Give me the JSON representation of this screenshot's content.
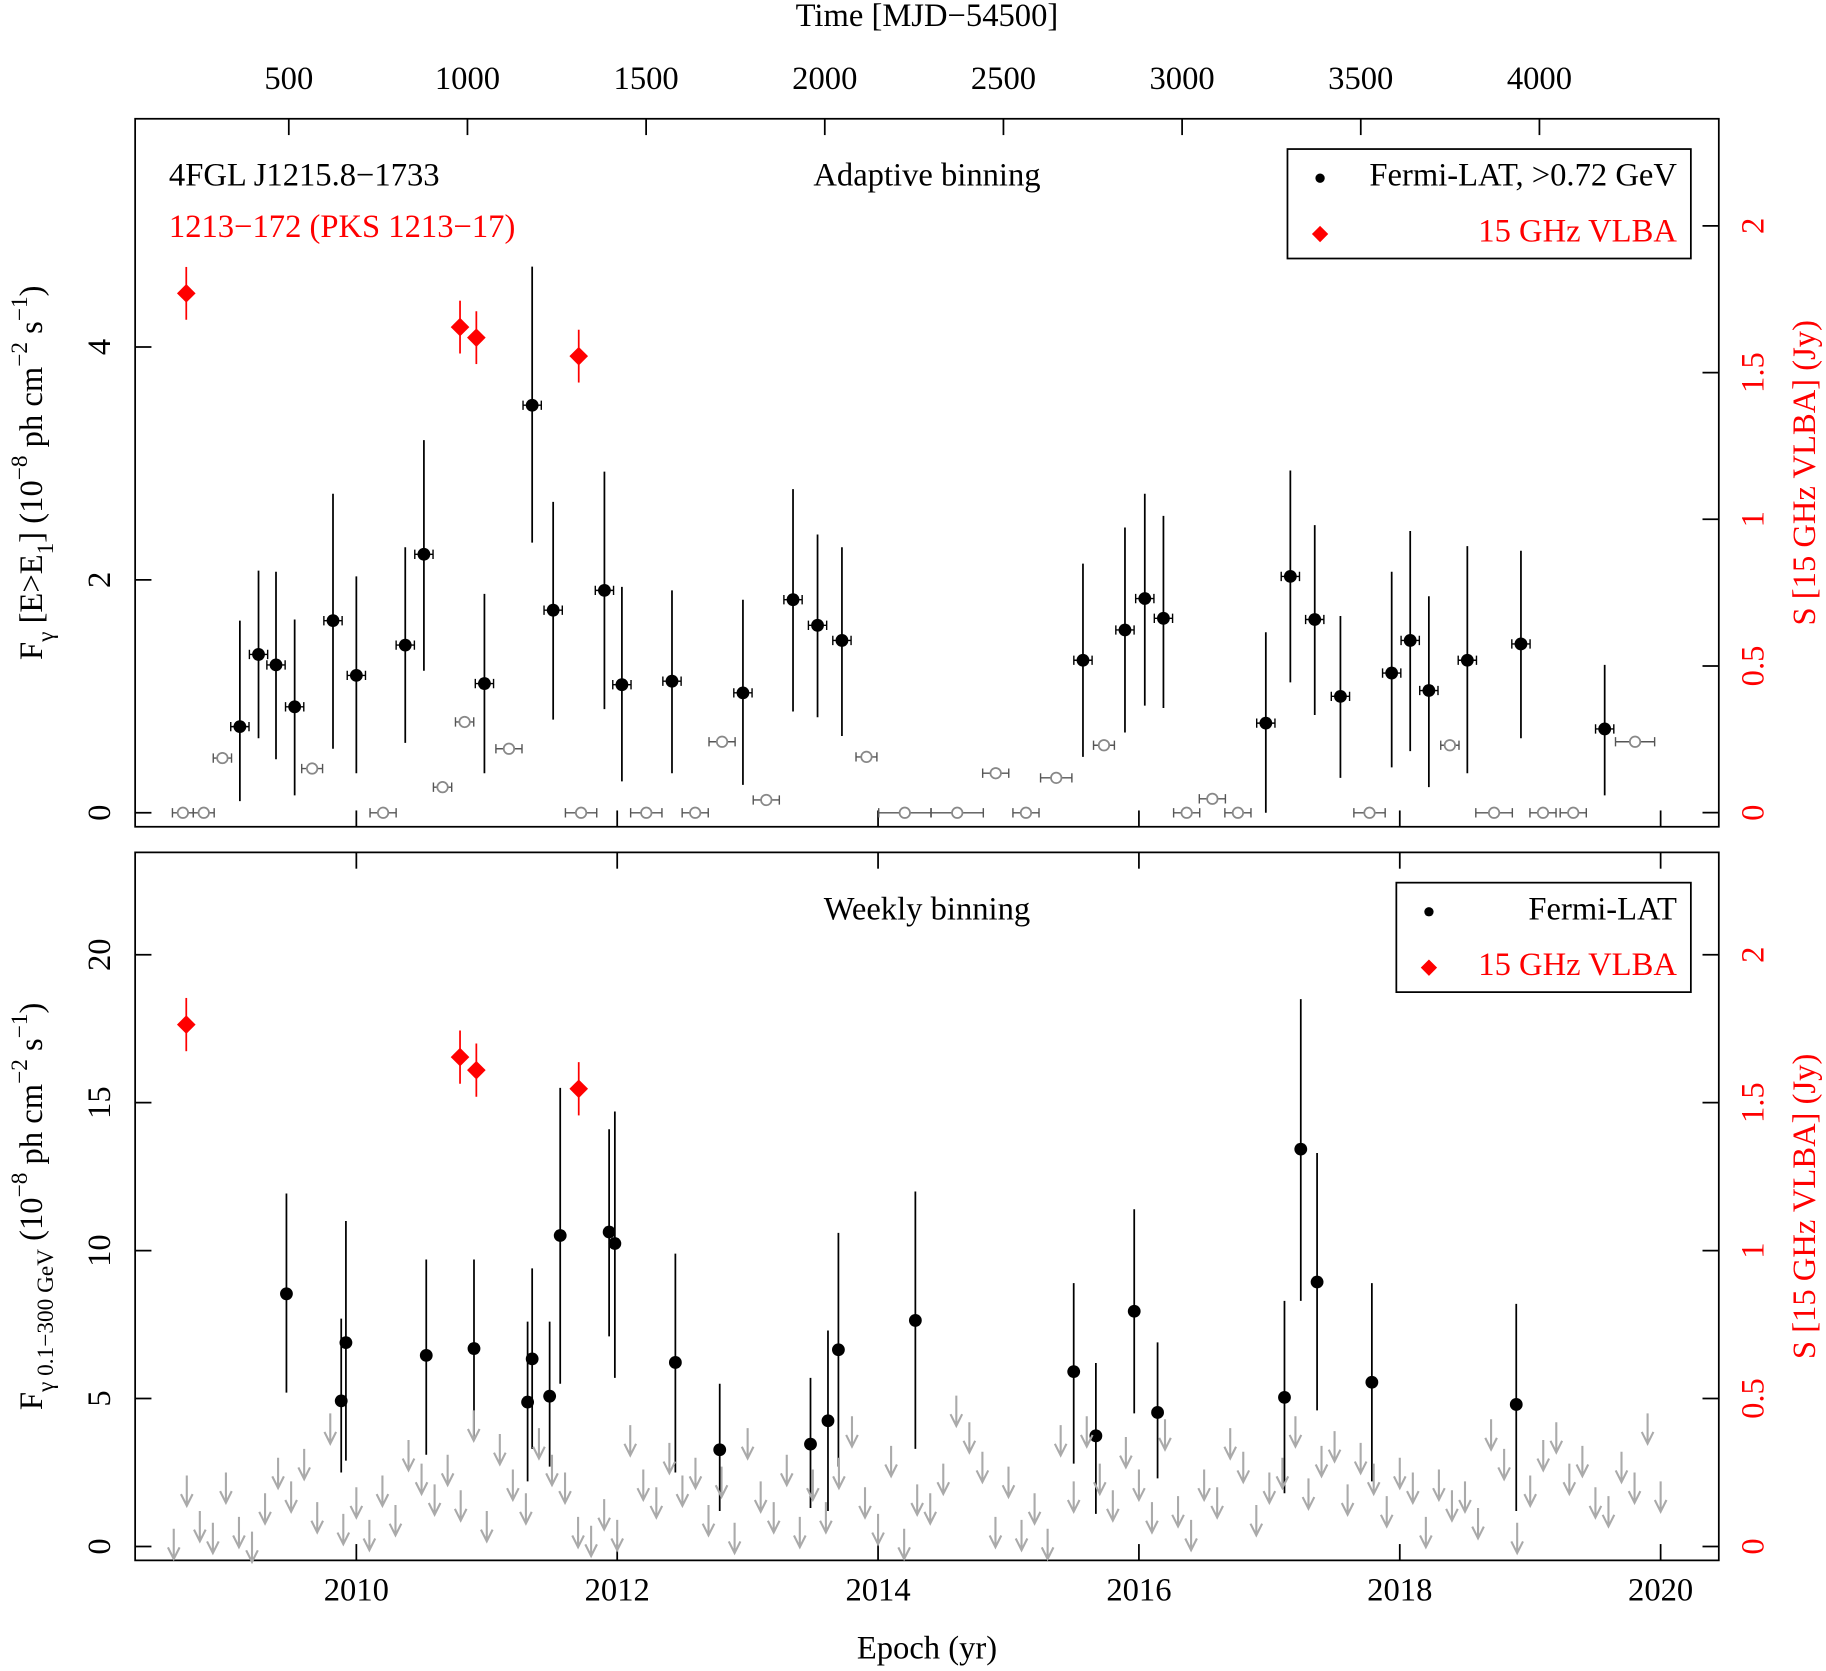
{
  "chart_data": [
    {
      "type": "scatter",
      "title": "Adaptive binning",
      "annotations": [
        {
          "text": "4FGL J1215.8−1733",
          "color": "#000000"
        },
        {
          "text": "1213−172 (PKS 1213−17)",
          "color": "#ff0000"
        }
      ],
      "x2label": "Time [MJD−54500]",
      "x2lim": [
        70,
        4502
      ],
      "x2ticks": [
        500,
        1000,
        1500,
        2000,
        2500,
        3000,
        3500,
        4000
      ],
      "xlim": [
        2008.304,
        2020.446
      ],
      "xticks": [
        2010,
        2012,
        2014,
        2016,
        2018,
        2020
      ],
      "xtick_labels": false,
      "ylabel": [
        [
          "F",
          "base"
        ],
        [
          "γ",
          "sub"
        ],
        [
          " [E>E",
          "base"
        ],
        [
          "1",
          "sub"
        ],
        [
          "] (10",
          "base"
        ],
        [
          "−8",
          "sup"
        ],
        [
          " ph cm",
          "base"
        ],
        [
          "−2",
          "sup"
        ],
        [
          " s",
          "base"
        ],
        [
          "−1",
          "sup"
        ],
        [
          ")",
          "base"
        ]
      ],
      "ylim": [
        -0.12,
        5.96
      ],
      "yticks": [
        0,
        2,
        4
      ],
      "y2label": "S [15 GHz VLBA] (Jy)",
      "y2color": "#ff0000",
      "y2lim": [
        -0.048,
        2.365
      ],
      "y2ticks": [
        0,
        0.5,
        1,
        1.5,
        2
      ],
      "legend": "upper right",
      "series": [
        {
          "name": "Fermi-LAT, >0.72 GeV",
          "color": "#000000",
          "marker": "filled-circle",
          "x": [
            2009.107,
            2009.25,
            2009.384,
            2009.527,
            2009.821,
            2010.0,
            2010.375,
            2010.518,
            2010.982,
            2011.348,
            2011.509,
            2011.902,
            2012.036,
            2012.42,
            2012.964,
            2013.348,
            2013.536,
            2013.723,
            2015.571,
            2015.893,
            2016.045,
            2016.188,
            2016.973,
            2017.161,
            2017.348,
            2017.545,
            2017.938,
            2018.08,
            2018.223,
            2018.518,
            2018.929,
            2019.571
          ],
          "values": [
            0.74,
            1.36,
            1.27,
            0.91,
            1.65,
            1.18,
            1.44,
            2.22,
            1.11,
            3.5,
            1.74,
            1.91,
            1.1,
            1.13,
            1.03,
            1.83,
            1.61,
            1.48,
            1.31,
            1.57,
            1.84,
            1.67,
            0.77,
            2.03,
            1.66,
            1.0,
            1.2,
            1.48,
            1.05,
            1.31,
            1.45,
            0.72
          ],
          "low": [
            0.1,
            0.64,
            0.46,
            0.15,
            0.55,
            0.34,
            0.6,
            1.22,
            0.34,
            2.32,
            0.8,
            0.89,
            0.27,
            0.34,
            0.24,
            0.87,
            0.82,
            0.66,
            0.48,
            0.69,
            0.92,
            0.9,
            0,
            1.12,
            0.84,
            0.3,
            0.39,
            0.53,
            0.22,
            0.34,
            0.64,
            0.15
          ],
          "high": [
            1.65,
            2.08,
            2.07,
            1.66,
            2.74,
            2.03,
            2.28,
            3.2,
            1.88,
            4.69,
            2.67,
            2.93,
            1.94,
            1.91,
            1.83,
            2.78,
            2.39,
            2.28,
            2.14,
            2.45,
            2.74,
            2.55,
            1.55,
            2.94,
            2.47,
            1.69,
            2.07,
            2.42,
            1.86,
            2.29,
            2.25,
            1.27
          ],
          "xerr": [
            0.07,
            0.07,
            0.07,
            0.07,
            0.07,
            0.07,
            0.07,
            0.07,
            0.07,
            0.07,
            0.07,
            0.07,
            0.07,
            0.07,
            0.07,
            0.07,
            0.07,
            0.07,
            0.07,
            0.07,
            0.07,
            0.07,
            0.07,
            0.07,
            0.07,
            0.07,
            0.07,
            0.07,
            0.07,
            0.07,
            0.07,
            0.07
          ]
        },
        {
          "color": "#888888",
          "marker": "open-circle",
          "x": [
            2008.67,
            2008.83,
            2008.973,
            2009.661,
            2010.205,
            2010.661,
            2010.83,
            2011.17,
            2011.723,
            2012.223,
            2012.598,
            2012.804,
            2013.143,
            2013.911,
            2014.205,
            2014.607,
            2014.902,
            2015.134,
            2015.366,
            2015.732,
            2016.366,
            2016.563,
            2016.759,
            2017.768,
            2018.384,
            2018.723,
            2019.098,
            2019.33,
            2019.804
          ],
          "values": [
            0,
            0,
            0.47,
            0.38,
            0,
            0.22,
            0.78,
            0.55,
            0,
            0,
            0,
            0.61,
            0.11,
            0.48,
            0,
            0,
            0.34,
            0,
            0.3,
            0.58,
            0,
            0.12,
            0,
            0,
            0.58,
            0,
            0,
            0,
            0.61
          ],
          "xerr": [
            0.08,
            0.08,
            0.07,
            0.08,
            0.1,
            0.07,
            0.07,
            0.1,
            0.12,
            0.12,
            0.1,
            0.1,
            0.1,
            0.08,
            0.2,
            0.2,
            0.1,
            0.1,
            0.12,
            0.08,
            0.1,
            0.1,
            0.1,
            0.12,
            0.07,
            0.14,
            0.1,
            0.1,
            0.15
          ]
        },
        {
          "name": "15 GHz VLBA",
          "color": "#ff0000",
          "marker": "diamond",
          "axis": "y2",
          "x": [
            2008.696,
            2010.795,
            2010.92,
            2011.705
          ],
          "values": [
            1.77,
            1.655,
            1.619,
            1.556
          ],
          "yerr": [
            0.09,
            0.09,
            0.09,
            0.09
          ]
        }
      ]
    },
    {
      "type": "scatter",
      "title": "Weekly binning",
      "xlabel": "Epoch (yr)",
      "xlim": [
        2008.304,
        2020.446
      ],
      "xticks": [
        2010,
        2012,
        2014,
        2016,
        2018,
        2020
      ],
      "xtick_labels": true,
      "ylabel": [
        [
          "F",
          "base"
        ],
        [
          "γ 0.1−300 GeV",
          "sub"
        ],
        [
          " (10",
          "base"
        ],
        [
          "−8",
          "sup"
        ],
        [
          " ph cm",
          "base"
        ],
        [
          "−2",
          "sup"
        ],
        [
          " s",
          "base"
        ],
        [
          "−1",
          "sup"
        ],
        [
          ")",
          "base"
        ]
      ],
      "ylim": [
        -0.47,
        23.46
      ],
      "yticks": [
        0,
        5,
        10,
        15,
        20
      ],
      "y2label": "S [15 GHz VLBA] (Jy)",
      "y2color": "#ff0000",
      "y2lim": [
        -0.047,
        2.346
      ],
      "y2ticks": [
        0,
        0.5,
        1,
        1.5,
        2
      ],
      "legend": "upper right",
      "series": [
        {
          "name": "Fermi-LAT",
          "color": "#000000",
          "marker": "filled-circle",
          "x": [
            2009.464,
            2009.884,
            2009.92,
            2010.536,
            2010.902,
            2011.313,
            2011.348,
            2011.482,
            2011.563,
            2011.938,
            2011.982,
            2012.446,
            2012.786,
            2013.482,
            2013.616,
            2013.696,
            2014.286,
            2015.5,
            2015.67,
            2015.964,
            2016.143,
            2017.116,
            2017.241,
            2017.366,
            2017.786,
            2018.893
          ],
          "values": [
            8.54,
            4.92,
            6.89,
            6.46,
            6.69,
            4.88,
            6.34,
            5.08,
            10.51,
            10.63,
            10.24,
            6.22,
            3.27,
            3.46,
            4.25,
            6.65,
            7.64,
            5.91,
            3.74,
            7.95,
            4.53,
            5.04,
            13.43,
            8.94,
            5.55,
            4.8
          ],
          "low": [
            5.2,
            2.5,
            2.9,
            3.1,
            3.7,
            2.2,
            3.3,
            2.7,
            5.5,
            7.1,
            5.7,
            2.5,
            1.2,
            1.3,
            1.2,
            2.7,
            3.3,
            2.8,
            1.1,
            4.5,
            2.3,
            1.8,
            8.3,
            4.6,
            2.2,
            1.2
          ],
          "high": [
            11.93,
            7.7,
            11.0,
            9.7,
            9.7,
            7.6,
            9.4,
            7.6,
            15.5,
            14.1,
            14.7,
            9.9,
            5.5,
            5.7,
            7.3,
            10.6,
            12.0,
            8.9,
            6.2,
            11.4,
            6.9,
            8.3,
            18.5,
            13.3,
            8.9,
            8.2
          ]
        },
        {
          "color": "#aaaaaa",
          "marker": "arrow",
          "x": [
            2008.6,
            2008.7,
            2008.8,
            2008.9,
            2009.0,
            2009.1,
            2009.2,
            2009.3,
            2009.4,
            2009.5,
            2009.6,
            2009.7,
            2009.8,
            2009.9,
            2010.0,
            2010.1,
            2010.2,
            2010.3,
            2010.4,
            2010.5,
            2010.6,
            2010.7,
            2010.8,
            2010.9,
            2011.0,
            2011.1,
            2011.2,
            2011.3,
            2011.4,
            2011.5,
            2011.6,
            2011.7,
            2011.8,
            2011.9,
            2012.0,
            2012.1,
            2012.2,
            2012.3,
            2012.4,
            2012.5,
            2012.6,
            2012.7,
            2012.8,
            2012.9,
            2013.0,
            2013.1,
            2013.2,
            2013.3,
            2013.4,
            2013.5,
            2013.6,
            2013.7,
            2013.8,
            2013.9,
            2014.0,
            2014.1,
            2014.2,
            2014.3,
            2014.4,
            2014.5,
            2014.6,
            2014.7,
            2014.8,
            2014.9,
            2015.0,
            2015.1,
            2015.2,
            2015.3,
            2015.4,
            2015.5,
            2015.6,
            2015.7,
            2015.8,
            2015.9,
            2016.0,
            2016.1,
            2016.2,
            2016.3,
            2016.4,
            2016.5,
            2016.6,
            2016.7,
            2016.8,
            2016.9,
            2017.0,
            2017.1,
            2017.2,
            2017.3,
            2017.4,
            2017.5,
            2017.6,
            2017.7,
            2017.8,
            2017.9,
            2018.0,
            2018.1,
            2018.2,
            2018.3,
            2018.4,
            2018.5,
            2018.6,
            2018.7,
            2018.8,
            2018.9,
            2019.0,
            2019.1,
            2019.2,
            2019.3,
            2019.4,
            2019.5,
            2019.6,
            2019.7,
            2019.8,
            2019.9,
            2020.0
          ],
          "values": [
            0.6,
            2.4,
            1.2,
            0.8,
            2.5,
            1.0,
            0.5,
            1.8,
            3.0,
            2.2,
            3.3,
            1.5,
            4.5,
            1.1,
            2.0,
            0.9,
            2.4,
            1.4,
            3.6,
            2.8,
            2.1,
            3.1,
            1.9,
            4.6,
            1.2,
            3.8,
            2.6,
            1.8,
            4.0,
            3.1,
            2.5,
            1.0,
            0.7,
            1.6,
            0.9,
            4.1,
            2.6,
            2.0,
            3.5,
            2.4,
            3.0,
            1.4,
            2.7,
            0.8,
            4.0,
            2.2,
            1.5,
            3.1,
            1.0,
            2.6,
            1.5,
            3.0,
            4.4,
            2.0,
            1.1,
            3.4,
            0.6,
            2.1,
            1.8,
            2.8,
            5.1,
            4.2,
            3.2,
            1.0,
            2.7,
            0.9,
            1.8,
            0.6,
            4.1,
            2.2,
            4.4,
            2.8,
            1.9,
            3.7,
            2.6,
            1.5,
            4.3,
            1.7,
            0.9,
            2.6,
            2.0,
            4.0,
            3.2,
            1.4,
            2.5,
            3.0,
            4.4,
            2.3,
            3.4,
            3.9,
            2.1,
            3.5,
            2.8,
            1.7,
            3.0,
            2.5,
            1.0,
            2.6,
            1.9,
            2.2,
            1.3,
            4.3,
            3.3,
            0.8,
            2.4,
            3.6,
            4.2,
            2.8,
            3.4,
            2.0,
            1.7,
            3.2,
            2.5,
            4.5,
            2.2
          ]
        },
        {
          "name": "15 GHz VLBA",
          "color": "#ff0000",
          "marker": "diamond",
          "axis": "y2",
          "x": [
            2008.696,
            2010.795,
            2010.92,
            2011.705
          ],
          "values": [
            1.764,
            1.654,
            1.61,
            1.547
          ],
          "yerr": [
            0.09,
            0.09,
            0.09,
            0.09
          ]
        }
      ]
    }
  ]
}
